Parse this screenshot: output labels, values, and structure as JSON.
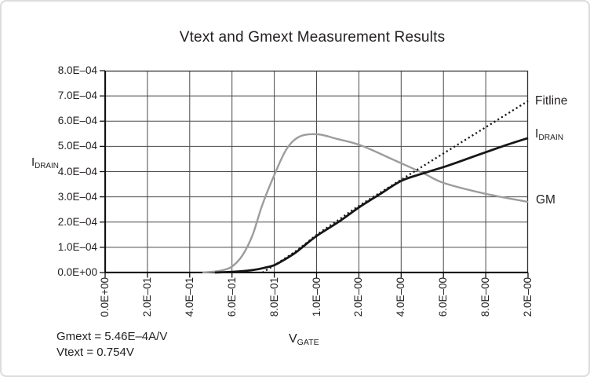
{
  "chart_data": {
    "type": "line",
    "title": "Vtext and Gmext Measurement Results",
    "xlabel": {
      "main": "V",
      "sub": "GATE"
    },
    "ylabel": {
      "main": "I",
      "sub": "DRAIN"
    },
    "ylim": [
      0,
      0.0008
    ],
    "grid": true,
    "legend_position": "right-outside",
    "x_scale_note": "11 equally spaced ticks, non-linear voltage scale as printed",
    "x_tick_labels": [
      "0.0E+00",
      "2.0E–01",
      "4.0E–01",
      "6.0E–01",
      "8.0E–01",
      "1.0E–00",
      "2.0E–00",
      "4.0E–00",
      "6.0E–00",
      "8.0E–00",
      "2.0E–00"
    ],
    "y_tick_labels": [
      "0.0E+00",
      "1.0E–04",
      "2.0E–04",
      "3.0E–04",
      "4.0E–04",
      "5.0E–04",
      "6.0E–04",
      "7.0E–04",
      "8.0E–04"
    ],
    "series": [
      {
        "name": "Fitline",
        "label": {
          "main": "Fitline",
          "sub": ""
        },
        "style": "dotted",
        "color": "#161616",
        "points_xfrac_value": [
          [
            0.372,
            0
          ],
          [
            0.401,
            3e-05
          ],
          [
            0.451,
            8.5e-05
          ],
          [
            0.501,
            0.00015
          ],
          [
            0.553,
            0.00021
          ],
          [
            0.601,
            0.000265
          ],
          [
            0.7,
            0.000368
          ],
          [
            0.8,
            0.000472
          ],
          [
            0.9,
            0.000576
          ],
          [
            1.0,
            0.00068
          ]
        ]
      },
      {
        "name": "IDRAIN",
        "label": {
          "main": "I",
          "sub": "DRAIN"
        },
        "style": "solid",
        "color": "#161616",
        "points_xfrac_value": [
          [
            0.26,
            0
          ],
          [
            0.29,
            2e-06
          ],
          [
            0.32,
            5e-06
          ],
          [
            0.35,
            1e-05
          ],
          [
            0.375,
            1.8e-05
          ],
          [
            0.401,
            3e-05
          ],
          [
            0.425,
            5.2e-05
          ],
          [
            0.451,
            8e-05
          ],
          [
            0.475,
            0.000112
          ],
          [
            0.501,
            0.000146
          ],
          [
            0.553,
            0.000202
          ],
          [
            0.601,
            0.000259
          ],
          [
            0.651,
            0.000312
          ],
          [
            0.701,
            0.000364
          ],
          [
            0.75,
            0.000392
          ],
          [
            0.8,
            0.000418
          ],
          [
            0.85,
            0.000447
          ],
          [
            0.9,
            0.000477
          ],
          [
            0.95,
            0.000506
          ],
          [
            1.0,
            0.000533
          ]
        ]
      },
      {
        "name": "GM",
        "label": {
          "main": "GM",
          "sub": ""
        },
        "style": "solid",
        "color": "#9c9c9c",
        "points_xfrac_value": [
          [
            0.23,
            0
          ],
          [
            0.26,
            4e-06
          ],
          [
            0.28,
            1e-05
          ],
          [
            0.301,
            2.5e-05
          ],
          [
            0.325,
            6.9e-05
          ],
          [
            0.349,
            0.00015
          ],
          [
            0.371,
            0.000265
          ],
          [
            0.399,
            0.000383
          ],
          [
            0.429,
            0.000489
          ],
          [
            0.46,
            0.000539
          ],
          [
            0.503,
            0.000548
          ],
          [
            0.547,
            0.00053
          ],
          [
            0.603,
            0.000505
          ],
          [
            0.683,
            0.000446
          ],
          [
            0.753,
            0.000393
          ],
          [
            0.801,
            0.000355
          ],
          [
            0.9,
            0.000312
          ],
          [
            1.0,
            0.00028
          ]
        ]
      }
    ],
    "annotations": [
      "Gmext = 5.46E–4A/V",
      "Vtext = 0.754V"
    ],
    "key_readings": {
      "gm_peak_value": 0.00055,
      "gm_peak_at_tick": "1.0E–00",
      "idrain_at_right_edge": 0.000533,
      "fitline_at_right_edge": 0.00068,
      "fitline_x_intercept_volts": 0.754
    }
  }
}
